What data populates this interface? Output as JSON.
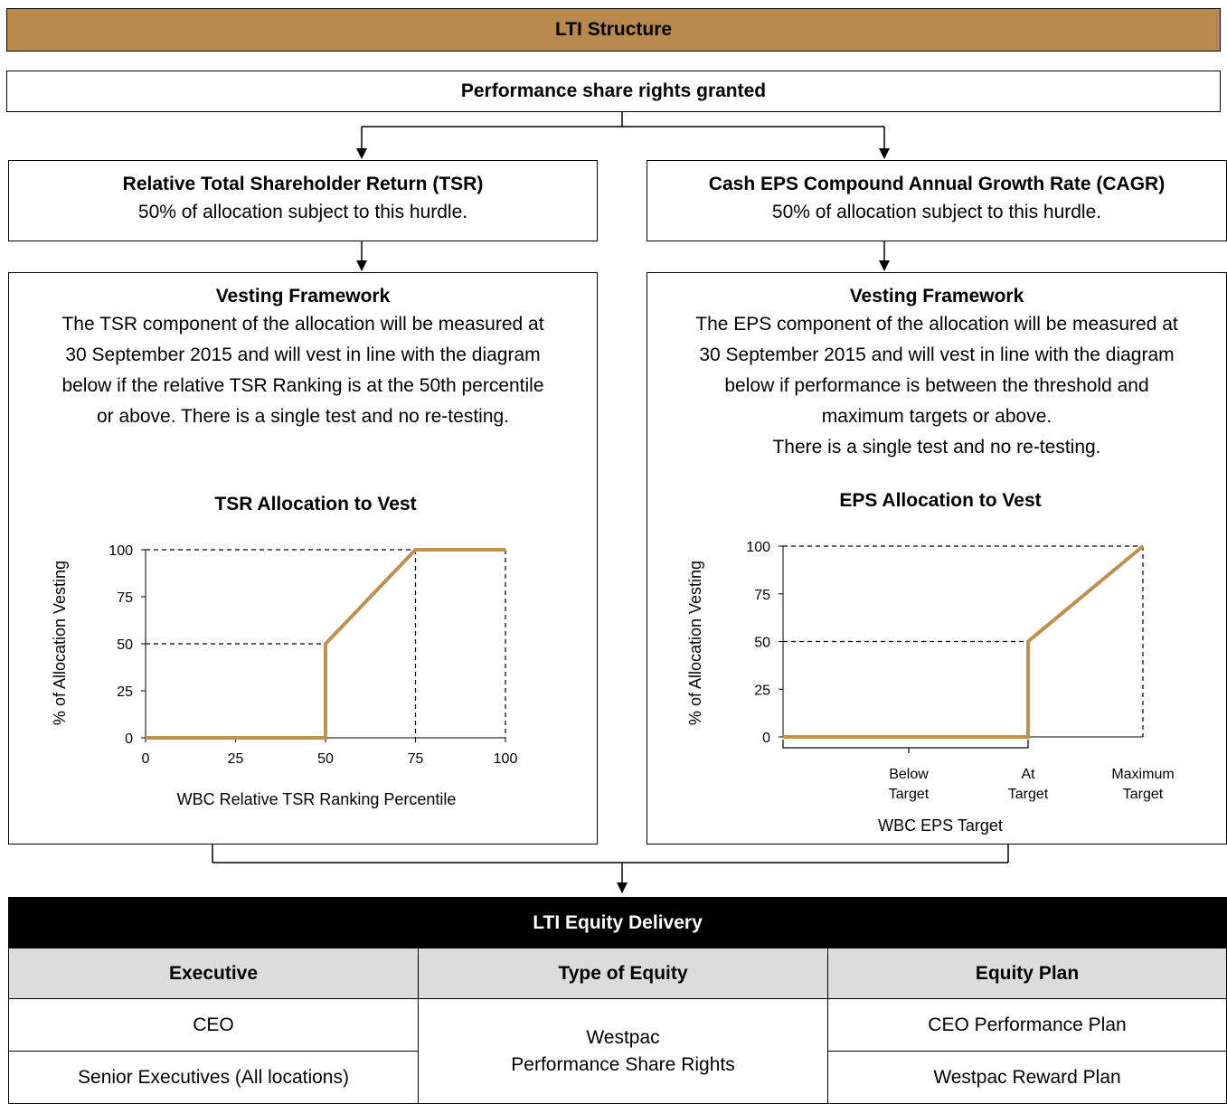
{
  "header": {
    "title": "LTI Structure"
  },
  "granted": {
    "title": "Performance share rights granted"
  },
  "tsr_box": {
    "title": "Relative Total Shareholder Return (TSR)",
    "subtitle": "50% of allocation subject to this hurdle."
  },
  "eps_box": {
    "title": "Cash EPS Compound Annual Growth Rate (CAGR)",
    "subtitle": "50% of allocation subject to this hurdle."
  },
  "tsr_framework": {
    "title": "Vesting Framework",
    "lines": [
      "The TSR component of the allocation will be measured at",
      "30 September 2015 and will vest in line with the diagram",
      "below if the relative TSR Ranking is at the 50th percentile",
      "or above. There is a single test and no re-testing."
    ]
  },
  "eps_framework": {
    "title": "Vesting Framework",
    "lines": [
      "The EPS component of the allocation will be measured at",
      "30 September 2015 and will vest in line with the diagram",
      "below if performance is between the threshold and",
      "maximum targets or above.",
      "There is a single test and no re-testing."
    ]
  },
  "chart_data": [
    {
      "type": "line",
      "title": "TSR Allocation to Vest",
      "xlabel": "WBC Relative TSR Ranking Percentile",
      "ylabel": "% of Allocation Vesting",
      "x_ticks": [
        "0",
        "25",
        "50",
        "75",
        "100"
      ],
      "y_ticks": [
        "0",
        "25",
        "50",
        "75",
        "100"
      ],
      "xlim": [
        0,
        100
      ],
      "ylim": [
        0,
        100
      ],
      "series": [
        {
          "x": [
            0,
            50,
            50,
            75,
            100
          ],
          "y": [
            0,
            0,
            50,
            100,
            100
          ]
        }
      ],
      "color": "#c0904f"
    },
    {
      "type": "line",
      "title": "EPS Allocation to Vest",
      "xlabel": "WBC EPS Target",
      "ylabel": "% of Allocation Vesting",
      "categories": [
        "Below Target",
        "At Target",
        "Maximum Target"
      ],
      "y_ticks": [
        "0",
        "25",
        "50",
        "75",
        "100"
      ],
      "ylim": [
        0,
        100
      ],
      "series": [
        {
          "x": [
            "start",
            "At Target",
            "At Target",
            "Maximum Target"
          ],
          "y": [
            0,
            0,
            50,
            100
          ]
        }
      ],
      "color": "#c0904f"
    }
  ],
  "equity": {
    "title": "LTI Equity Delivery",
    "columns": [
      "Executive",
      "Type of Equity",
      "Equity Plan"
    ],
    "rows": [
      {
        "executive": "CEO",
        "plan": "CEO Performance Plan"
      },
      {
        "executive": "Senior Executives (All locations)",
        "plan": "Westpac Reward Plan"
      }
    ],
    "equity_type_lines": [
      "Westpac",
      "Performance Share Rights"
    ]
  }
}
